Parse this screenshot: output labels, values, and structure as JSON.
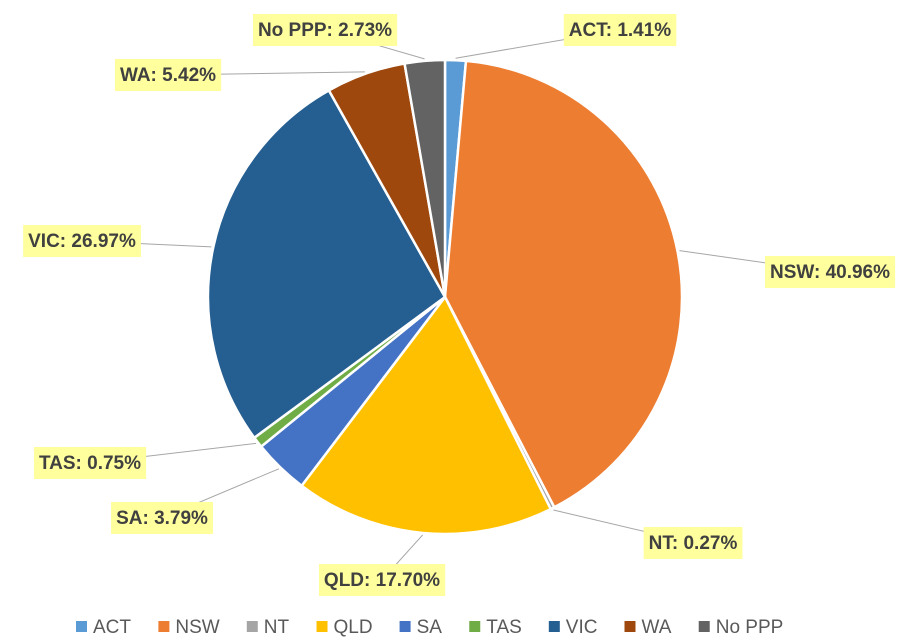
{
  "chart_data": {
    "type": "pie",
    "categories": [
      "ACT",
      "NSW",
      "NT",
      "QLD",
      "SA",
      "TAS",
      "VIC",
      "WA",
      "No PPP"
    ],
    "values": [
      1.41,
      40.96,
      0.27,
      17.7,
      3.79,
      0.75,
      26.97,
      5.42,
      2.73
    ],
    "value_labels": [
      "ACT: 1.41%",
      "NSW: 40.96%",
      "NT: 0.27%",
      "QLD: 17.70%",
      "SA: 3.79%",
      "TAS: 0.75%",
      "VIC: 26.97%",
      "WA: 5.42%",
      "No PPP: 2.73%"
    ],
    "colors": [
      "#5b9bd5",
      "#ed7d31",
      "#a5a5a5",
      "#ffc000",
      "#4472c4",
      "#70ad47",
      "#255e91",
      "#9e480e",
      "#636363"
    ],
    "legend": "bottom"
  }
}
